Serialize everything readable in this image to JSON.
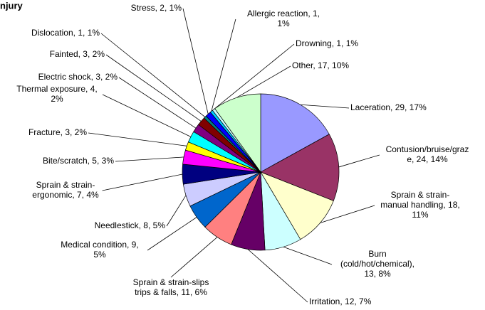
{
  "chart_data": {
    "type": "pie",
    "title": "njury",
    "values": [
      29,
      24,
      18,
      13,
      12,
      11,
      9,
      8,
      7,
      5,
      3,
      4,
      3,
      3,
      1,
      2,
      1,
      1,
      17
    ],
    "value_labels": [
      "Laceration, 29, 17%",
      "Contusion/bruise/graz\ne, 24, 14%",
      "Sprain & strain-\nmanual handling, 18,\n11%",
      "Burn\n(cold/hot/chemical),\n13, 8%",
      "Irritation, 12, 7%",
      "Sprain & strain-slips\ntrips & falls, 11, 6%",
      "Medical condition, 9,\n5%",
      "Needlestick, 8, 5%",
      "Sprain & strain-\nergonomic, 7, 4%",
      "Bite/scratch, 5, 3%",
      "Fracture, 3, 2%",
      "Thermal exposure, 4,\n2%",
      "Electric shock, 3, 2%",
      "Fainted, 3, 2%",
      "Dislocation, 1, 1%",
      "Stress, 2, 1%",
      "Allergic reaction, 1,\n1%",
      "Drowning, 1, 1%",
      "Other, 17, 10%"
    ],
    "colors": [
      "#9999ff",
      "#993366",
      "#ffffcc",
      "#ccffff",
      "#660066",
      "#ff8080",
      "#0066cc",
      "#ccccff",
      "#000080",
      "#ff00ff",
      "#ffff00",
      "#00ffff",
      "#800080",
      "#800000",
      "#008080",
      "#0000ff",
      "#00ccff",
      "#ccffff",
      "#ccffcc"
    ]
  }
}
